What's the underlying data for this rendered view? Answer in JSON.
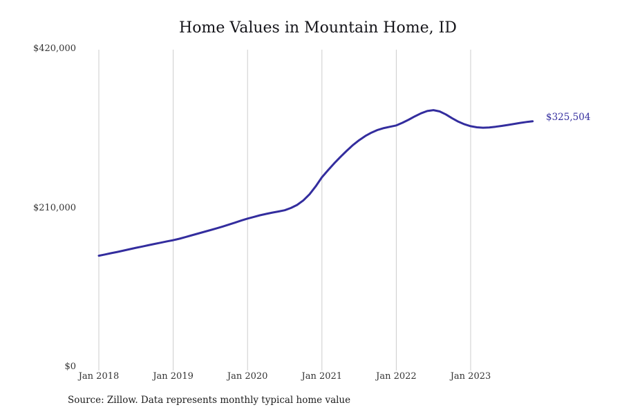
{
  "chart": {
    "title": "Home Values in Mountain Home, ID",
    "source": "Source: Zillow. Data represents monthly typical home value"
  },
  "chart_data": {
    "type": "line",
    "title": "Home Values in Mountain Home, ID",
    "xlabel": "",
    "ylabel": "",
    "ylim": [
      0,
      420000
    ],
    "grid": "vertical-only",
    "legend": "none",
    "line_color": "#332d9e",
    "grid_color": "#cccccc",
    "end_label": "$325,504",
    "end_value": 325504,
    "source": "Source: Zillow. Data represents monthly typical home value",
    "y_ticks": [
      {
        "label": "$0",
        "value": 0
      },
      {
        "label": "$210,000",
        "value": 210000
      },
      {
        "label": "$420,000",
        "value": 420000
      }
    ],
    "x_ticks": [
      {
        "label": "Jan 2018",
        "month_index": 0
      },
      {
        "label": "Jan 2019",
        "month_index": 12
      },
      {
        "label": "Jan 2020",
        "month_index": 24
      },
      {
        "label": "Jan 2021",
        "month_index": 36
      },
      {
        "label": "Jan 2022",
        "month_index": 48
      },
      {
        "label": "Jan 2023",
        "month_index": 60
      }
    ],
    "x": [
      "2018-01",
      "2018-02",
      "2018-03",
      "2018-04",
      "2018-05",
      "2018-06",
      "2018-07",
      "2018-08",
      "2018-09",
      "2018-10",
      "2018-11",
      "2018-12",
      "2019-01",
      "2019-02",
      "2019-03",
      "2019-04",
      "2019-05",
      "2019-06",
      "2019-07",
      "2019-08",
      "2019-09",
      "2019-10",
      "2019-11",
      "2019-12",
      "2020-01",
      "2020-02",
      "2020-03",
      "2020-04",
      "2020-05",
      "2020-06",
      "2020-07",
      "2020-08",
      "2020-09",
      "2020-10",
      "2020-11",
      "2020-12",
      "2021-01",
      "2021-02",
      "2021-03",
      "2021-04",
      "2021-05",
      "2021-06",
      "2021-07",
      "2021-08",
      "2021-09",
      "2021-10",
      "2021-11",
      "2021-12",
      "2022-01",
      "2022-02",
      "2022-03",
      "2022-04",
      "2022-05",
      "2022-06",
      "2022-07",
      "2022-08",
      "2022-09",
      "2022-10",
      "2022-11",
      "2022-12",
      "2023-01",
      "2023-02",
      "2023-03",
      "2023-04",
      "2023-05",
      "2023-06",
      "2023-07",
      "2023-08",
      "2023-09",
      "2023-10",
      "2023-11"
    ],
    "values": [
      148000,
      149600,
      151300,
      153000,
      154800,
      156600,
      158400,
      160100,
      161800,
      163500,
      165200,
      166900,
      168500,
      170400,
      172600,
      174900,
      177200,
      179500,
      181800,
      184100,
      186500,
      189100,
      191700,
      194400,
      197000,
      199200,
      201300,
      203200,
      204900,
      206400,
      208000,
      211000,
      215000,
      221000,
      229000,
      239500,
      251500,
      261000,
      270000,
      278500,
      286500,
      294000,
      300500,
      306000,
      310500,
      314000,
      316500,
      318200,
      320000,
      323500,
      327500,
      332000,
      336000,
      339000,
      340200,
      338500,
      334500,
      329500,
      325000,
      321500,
      319000,
      317500,
      317000,
      317300,
      318200,
      319300,
      320600,
      322000,
      323300,
      324500,
      325504
    ]
  }
}
